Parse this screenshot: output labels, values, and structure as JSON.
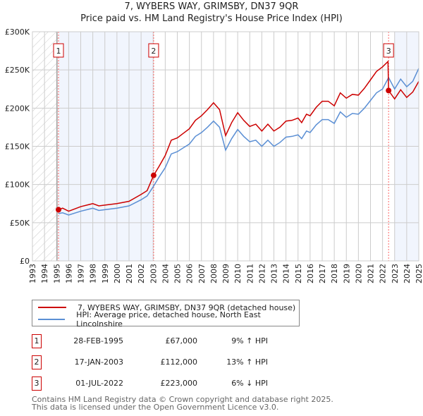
{
  "chart_data": {
    "type": "line",
    "title": "7, WYBERS WAY, GRIMSBY, DN37 9QR",
    "subtitle": "Price paid vs. HM Land Registry's House Price Index (HPI)",
    "xlim": [
      1993,
      2025
    ],
    "ylim": [
      0,
      300000
    ],
    "x_ticks": [
      "1993",
      "1994",
      "1995",
      "1996",
      "1997",
      "1998",
      "1999",
      "2000",
      "2001",
      "2002",
      "2003",
      "2004",
      "2005",
      "2006",
      "2007",
      "2008",
      "2009",
      "2010",
      "2011",
      "2012",
      "2013",
      "2014",
      "2015",
      "2016",
      "2017",
      "2018",
      "2019",
      "2020",
      "2021",
      "2022",
      "2023",
      "2024",
      "2025"
    ],
    "y_ticks": [
      {
        "v": 0,
        "label": "£0"
      },
      {
        "v": 50000,
        "label": "£50K"
      },
      {
        "v": 100000,
        "label": "£100K"
      },
      {
        "v": 150000,
        "label": "£150K"
      },
      {
        "v": 200000,
        "label": "£200K"
      },
      {
        "v": 250000,
        "label": "£250K"
      },
      {
        "v": 300000,
        "label": "£300K"
      }
    ],
    "grid": true,
    "series": [
      {
        "name": "7, WYBERS WAY, GRIMSBY, DN37 9QR (detached house)",
        "color": "#cc0000",
        "x": [
          1995.16,
          1995.5,
          1996,
          1997,
          1998,
          1998.5,
          1999,
          2000,
          2001,
          2002,
          2002.5,
          2003.04,
          2003.5,
          2004,
          2004.5,
          2005,
          2005.5,
          2006,
          2006.5,
          2007,
          2007.5,
          2008,
          2008.5,
          2009,
          2009.5,
          2010,
          2010.5,
          2011,
          2011.5,
          2012,
          2012.5,
          2013,
          2013.5,
          2014,
          2014.5,
          2015,
          2015.3,
          2015.7,
          2016,
          2016.5,
          2017,
          2017.5,
          2018,
          2018.5,
          2019,
          2019.5,
          2020,
          2020.5,
          2021,
          2021.5,
          2022,
          2022.45,
          2022.5,
          2023,
          2023.5,
          2024,
          2024.5,
          2025
        ],
        "y": [
          67000,
          69000,
          65000,
          71000,
          75000,
          72000,
          73000,
          75000,
          78000,
          87000,
          92000,
          112000,
          124000,
          138000,
          158000,
          161000,
          167000,
          173000,
          184000,
          190000,
          198000,
          207000,
          198000,
          164000,
          181000,
          194000,
          184000,
          176000,
          179000,
          170000,
          179000,
          170000,
          175000,
          183000,
          184000,
          187000,
          181000,
          192000,
          190000,
          201000,
          209000,
          209000,
          203000,
          220000,
          213000,
          218000,
          217000,
          226000,
          237000,
          248000,
          254000,
          261000,
          223000,
          212000,
          224000,
          214000,
          221000,
          235000
        ]
      },
      {
        "name": "HPI: Average price, detached house, North East Lincolnshire",
        "color": "#5b8fd4",
        "x": [
          1995.16,
          1995.5,
          1996,
          1997,
          1998,
          1998.5,
          1999,
          2000,
          2001,
          2002,
          2002.5,
          2003,
          2003.5,
          2004,
          2004.5,
          2005,
          2005.5,
          2006,
          2006.5,
          2007,
          2007.5,
          2008,
          2008.5,
          2009,
          2009.5,
          2010,
          2010.5,
          2011,
          2011.5,
          2012,
          2012.5,
          2013,
          2013.5,
          2014,
          2014.5,
          2015,
          2015.3,
          2015.7,
          2016,
          2016.5,
          2017,
          2017.5,
          2018,
          2018.5,
          2019,
          2019.5,
          2020,
          2020.5,
          2021,
          2021.5,
          2022,
          2022.5,
          2023,
          2023.5,
          2024,
          2024.5,
          2025
        ],
        "y": [
          62000,
          63000,
          60000,
          65000,
          69000,
          66000,
          67000,
          69000,
          72000,
          80000,
          85000,
          97000,
          110000,
          122000,
          140000,
          143000,
          148000,
          153000,
          163000,
          168000,
          175000,
          183000,
          175000,
          145000,
          160000,
          172000,
          163000,
          156000,
          158000,
          150000,
          158000,
          150000,
          155000,
          162000,
          163000,
          165000,
          160000,
          170000,
          168000,
          178000,
          185000,
          185000,
          180000,
          195000,
          188000,
          193000,
          192000,
          200000,
          210000,
          220000,
          225000,
          240000,
          225000,
          238000,
          228000,
          235000,
          252000
        ]
      }
    ],
    "sales": [
      {
        "id": "1",
        "date": "28-FEB-1995",
        "x": 1995.16,
        "price": 67000,
        "price_label": "£67,000",
        "hpi": "9% ↑ HPI"
      },
      {
        "id": "2",
        "date": "17-JAN-2003",
        "x": 2003.04,
        "price": 112000,
        "price_label": "£112,000",
        "hpi": "13% ↑ HPI"
      },
      {
        "id": "3",
        "date": "01-JUL-2022",
        "x": 2022.5,
        "price": 223000,
        "price_label": "£223,000",
        "hpi": "6% ↓ HPI"
      }
    ],
    "legend_position": "below"
  },
  "footer": {
    "line1": "Contains HM Land Registry data © Crown copyright and database right 2025.",
    "line2": "This data is licensed under the Open Government Licence v3.0."
  }
}
